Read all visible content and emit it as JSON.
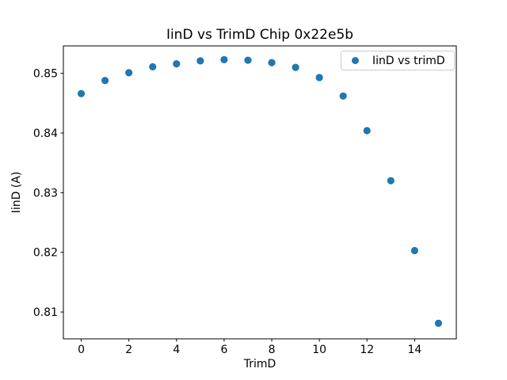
{
  "figure": {
    "background": "#ffffff"
  },
  "chart_data": {
    "type": "scatter",
    "title": "IinD vs TrimD Chip 0x22e5b",
    "xlabel": "TrimD",
    "ylabel": "IinD (A)",
    "x": [
      0,
      1,
      2,
      3,
      4,
      5,
      6,
      7,
      8,
      9,
      10,
      11,
      12,
      13,
      14,
      15
    ],
    "y": [
      0.8466,
      0.8488,
      0.8501,
      0.8511,
      0.8516,
      0.8521,
      0.8523,
      0.8522,
      0.8518,
      0.851,
      0.8493,
      0.8462,
      0.8404,
      0.832,
      0.8203,
      0.8081
    ],
    "xlim": [
      -0.75,
      15.75
    ],
    "ylim": [
      0.8055,
      0.8546
    ],
    "xticks": [
      0,
      2,
      4,
      6,
      8,
      10,
      12,
      14
    ],
    "yticks": [
      0.81,
      0.82,
      0.83,
      0.84,
      0.85
    ],
    "ytick_decimals": 2,
    "grid": false,
    "marker": {
      "color": "#1f77b4",
      "radius_px": 4.6
    },
    "spine_color": "#000000",
    "legend": {
      "position": "upper right",
      "entries": [
        {
          "label": "IinD vs trimD",
          "marker_color": "#1f77b4"
        }
      ]
    }
  }
}
